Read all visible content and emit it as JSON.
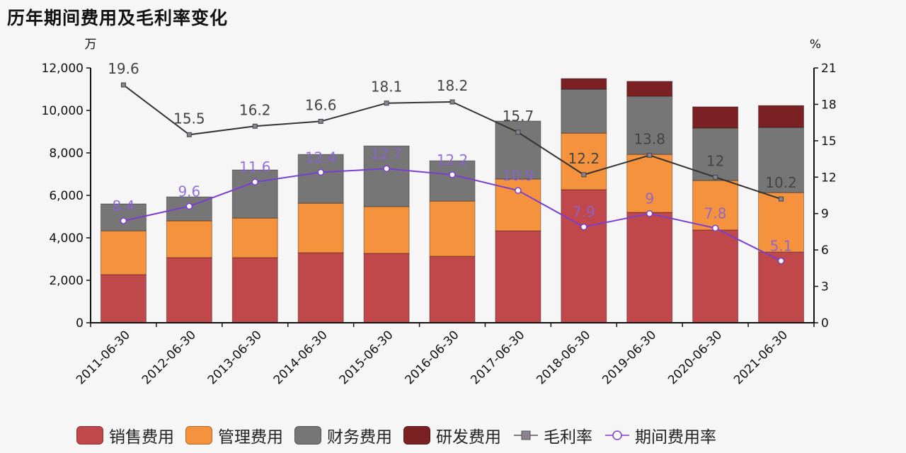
{
  "title": "历年期间费用及毛利率变化",
  "chart_data": {
    "type": "bar",
    "title": "历年期间费用及毛利率变化",
    "xlabel": "",
    "ylabel": "万",
    "y2label": "%",
    "ylim": [
      0,
      12000
    ],
    "y2lim": [
      0,
      21
    ],
    "yticks": [
      "0",
      "2,000",
      "4,000",
      "6,000",
      "8,000",
      "10,000",
      "12,000"
    ],
    "y2ticks": [
      "0",
      "3",
      "6",
      "9",
      "12",
      "15",
      "18",
      "21"
    ],
    "categories": [
      "2011-06-30",
      "2012-06-30",
      "2013-06-30",
      "2014-06-30",
      "2015-06-30",
      "2016-06-30",
      "2017-06-30",
      "2018-06-30",
      "2019-06-30",
      "2020-06-30",
      "2021-06-30"
    ],
    "series": [
      {
        "name": "销售费用",
        "type": "bar",
        "stack": "cost",
        "color": "#c0474a",
        "values": [
          2270,
          3070,
          3070,
          3300,
          3270,
          3130,
          4330,
          6270,
          5200,
          4370,
          3330
        ]
      },
      {
        "name": "管理费用",
        "type": "bar",
        "stack": "cost",
        "color": "#f5923e",
        "values": [
          2060,
          1730,
          1860,
          2330,
          2200,
          2600,
          2440,
          2660,
          2730,
          2330,
          2800
        ]
      },
      {
        "name": "财务费用",
        "type": "bar",
        "stack": "cost",
        "color": "#767676",
        "values": [
          1270,
          1130,
          2270,
          2300,
          2860,
          1900,
          2730,
          2070,
          2740,
          2470,
          3070
        ]
      },
      {
        "name": "研发费用",
        "type": "bar",
        "stack": "cost",
        "color": "#7b2023",
        "values": [
          0,
          0,
          0,
          0,
          0,
          0,
          0,
          500,
          700,
          1000,
          1030
        ]
      },
      {
        "name": "毛利率",
        "type": "line",
        "axis": "right",
        "color": "#333333",
        "values": [
          19.6,
          15.5,
          16.2,
          16.6,
          18.1,
          18.2,
          15.7,
          12.2,
          13.8,
          12,
          10.2
        ]
      },
      {
        "name": "期间费用率",
        "type": "line",
        "axis": "right",
        "color": "#7b3fd0",
        "values": [
          8.4,
          9.6,
          11.6,
          12.4,
          12.7,
          12.2,
          10.9,
          7.9,
          9,
          7.8,
          5.1
        ]
      }
    ],
    "grid": false,
    "legend_position": "bottom"
  }
}
